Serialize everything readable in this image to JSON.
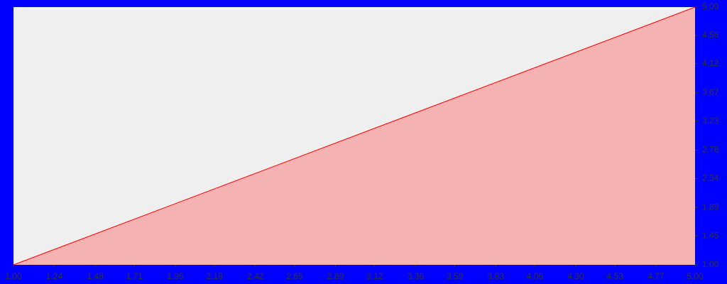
{
  "chart_data": {
    "type": "area",
    "x": [
      1,
      5
    ],
    "values": [
      1,
      5
    ],
    "color": "#ff0000",
    "fill_color": "#f4b2b2",
    "xlim": [
      1,
      5
    ],
    "ylim": [
      1,
      5
    ],
    "xticks": [
      {
        "value": 1,
        "label": "1.00"
      },
      {
        "value": 1.24,
        "label": "1.24"
      },
      {
        "value": 1.48,
        "label": "1.48"
      },
      {
        "value": 1.71,
        "label": "1.71"
      },
      {
        "value": 1.95,
        "label": "1.95"
      },
      {
        "value": 2.18,
        "label": "2.18"
      },
      {
        "value": 2.42,
        "label": "2.42"
      },
      {
        "value": 2.65,
        "label": "2.65"
      },
      {
        "value": 2.89,
        "label": "2.89"
      },
      {
        "value": 3.12,
        "label": "3.12"
      },
      {
        "value": 3.36,
        "label": "3.36"
      },
      {
        "value": 3.59,
        "label": "3.59"
      },
      {
        "value": 3.83,
        "label": "3.83"
      },
      {
        "value": 4.06,
        "label": "4.06"
      },
      {
        "value": 4.3,
        "label": "4.30"
      },
      {
        "value": 4.53,
        "label": "4.53"
      },
      {
        "value": 4.77,
        "label": "4.77"
      },
      {
        "value": 5,
        "label": "5.00"
      }
    ],
    "yticks": [
      {
        "value": 1,
        "label": "1.00"
      },
      {
        "value": 1.45,
        "label": "1.45"
      },
      {
        "value": 1.89,
        "label": "1.89"
      },
      {
        "value": 2.34,
        "label": "2.34"
      },
      {
        "value": 2.78,
        "label": "2.78"
      },
      {
        "value": 3.23,
        "label": "3.23"
      },
      {
        "value": 3.67,
        "label": "3.67"
      },
      {
        "value": 4.12,
        "label": "4.12"
      },
      {
        "value": 4.56,
        "label": "4.56"
      },
      {
        "value": 5,
        "label": "5.00"
      }
    ],
    "y_axis_side": "right",
    "grid": false
  }
}
